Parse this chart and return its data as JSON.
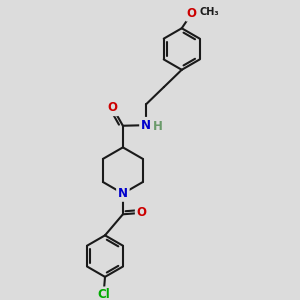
{
  "bg_color": "#dcdcdc",
  "bond_color": "#1a1a1a",
  "bond_width": 1.5,
  "atom_colors": {
    "N": "#0000cc",
    "O": "#cc0000",
    "Cl": "#00aa00",
    "H": "#6a9a6a",
    "C": "#1a1a1a"
  },
  "font_size_atom": 8.5,
  "figsize": [
    3.0,
    3.0
  ],
  "dpi": 100,
  "xlim": [
    0,
    10
  ],
  "ylim": [
    0,
    10
  ]
}
